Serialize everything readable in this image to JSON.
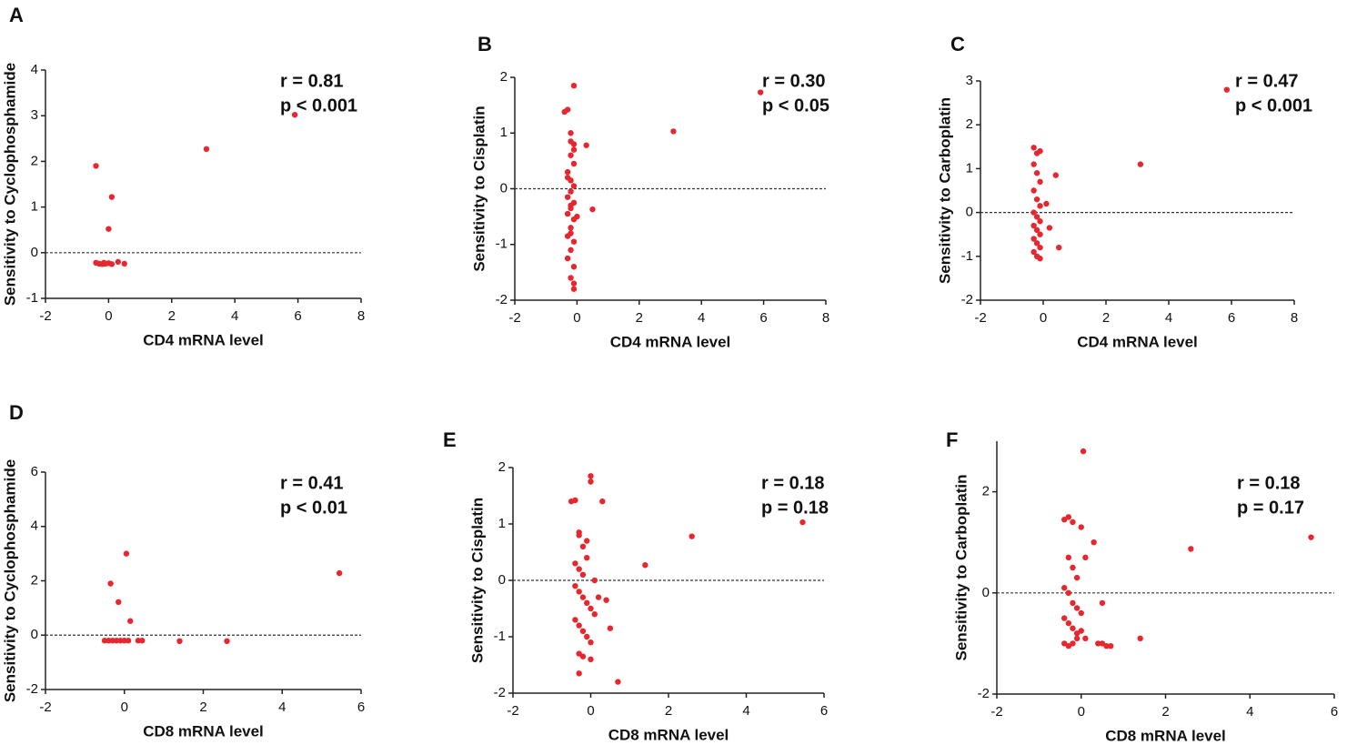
{
  "chart_data": [
    {
      "type": "scatter",
      "panel": "A",
      "xlabel": "CD4 mRNA level",
      "ylabel": "Sensitivity to Cyclophosphamide",
      "annotations": [
        "r = 0.81",
        "p < 0.001"
      ],
      "color": "#e8262e",
      "x": [
        -0.4,
        0.1,
        0.0,
        3.1,
        5.9,
        -0.4,
        -0.3,
        -0.2,
        -0.1,
        0.0,
        0.1,
        0.3,
        0.5,
        -0.15
      ],
      "y": [
        1.9,
        1.22,
        0.52,
        2.27,
        3.02,
        -0.22,
        -0.24,
        -0.25,
        -0.24,
        -0.23,
        -0.25,
        -0.2,
        -0.24,
        -0.22
      ],
      "xlim": [
        -2,
        8
      ],
      "ylim": [
        -1,
        4
      ],
      "xticks": [
        -2,
        0,
        2,
        4,
        6,
        8
      ],
      "yticks": [
        -1,
        0,
        1,
        2,
        3,
        4
      ],
      "hline": 0
    },
    {
      "type": "scatter",
      "panel": "B",
      "xlabel": "CD4 mRNA level",
      "ylabel": "Sensitivity to Cisplatin",
      "annotations": [
        "r = 0.30",
        "p < 0.05"
      ],
      "color": "#e8262e",
      "x": [
        -0.3,
        -0.4,
        -0.1,
        -0.2,
        -0.1,
        -0.2,
        -0.1,
        -0.3,
        -0.2,
        -0.1,
        -0.2,
        -0.3,
        -0.1,
        -0.2,
        -0.3,
        -0.1,
        -0.2,
        -0.3,
        -0.1,
        -0.2,
        -0.3,
        -0.1,
        -0.2,
        -0.1,
        -0.3,
        -0.2,
        -0.1,
        0.0,
        -0.2,
        0.3,
        0.5,
        3.1,
        5.9,
        -0.1,
        -0.2
      ],
      "y": [
        1.42,
        1.38,
        1.85,
        0.85,
        0.8,
        0.6,
        0.45,
        0.3,
        0.15,
        0.05,
        -0.05,
        -0.15,
        -0.25,
        -0.35,
        -0.45,
        -0.55,
        -0.7,
        -0.85,
        -0.95,
        -1.1,
        -1.25,
        -1.4,
        -1.6,
        -1.8,
        0.2,
        -0.3,
        0.7,
        -0.5,
        1.0,
        0.78,
        -0.37,
        1.03,
        1.73,
        -1.7,
        -0.8
      ],
      "xlim": [
        -2,
        8
      ],
      "ylim": [
        -2,
        2
      ],
      "xticks": [
        -2,
        0,
        2,
        4,
        6,
        8
      ],
      "yticks": [
        -2,
        -1,
        0,
        1,
        2
      ],
      "hline": 0
    },
    {
      "type": "scatter",
      "panel": "C",
      "xlabel": "CD4 mRNA level",
      "ylabel": "Sensitivity to Carboplatin",
      "annotations": [
        "r = 0.47",
        "p < 0.001"
      ],
      "color": "#e8262e",
      "x": [
        -0.3,
        -0.1,
        -0.2,
        -0.3,
        -0.2,
        -0.1,
        -0.3,
        -0.2,
        -0.1,
        -0.3,
        -0.2,
        -0.1,
        -0.3,
        -0.2,
        -0.1,
        -0.3,
        -0.2,
        -0.1,
        -0.3,
        -0.2,
        -0.1,
        0.1,
        0.2,
        0.4,
        0.5,
        3.1,
        5.85
      ],
      "y": [
        1.48,
        1.4,
        1.35,
        1.1,
        0.9,
        0.7,
        0.5,
        0.3,
        0.15,
        0.0,
        -0.1,
        -0.2,
        -0.3,
        -0.4,
        -0.5,
        -0.6,
        -0.7,
        -0.8,
        -0.9,
        -1.0,
        -1.05,
        0.2,
        -0.35,
        0.85,
        -0.8,
        1.1,
        2.8
      ],
      "xlim": [
        -2,
        8
      ],
      "ylim": [
        -2,
        3
      ],
      "xticks": [
        -2,
        0,
        2,
        4,
        6,
        8
      ],
      "yticks": [
        -2,
        -1,
        0,
        1,
        2,
        3
      ],
      "hline": 0
    },
    {
      "type": "scatter",
      "panel": "D",
      "xlabel": "CD8 mRNA level",
      "ylabel": "Sensitivity to Cyclophosphamide",
      "annotations": [
        "r = 0.41",
        "p < 0.01"
      ],
      "color": "#e8262e",
      "x": [
        -0.5,
        -0.4,
        -0.3,
        -0.2,
        -0.1,
        0.0,
        0.1,
        0.35,
        0.45,
        1.4,
        2.6,
        5.45,
        -0.35,
        -0.15,
        0.05,
        0.15
      ],
      "y": [
        -0.2,
        -0.2,
        -0.2,
        -0.2,
        -0.2,
        -0.2,
        -0.2,
        -0.2,
        -0.2,
        -0.22,
        -0.22,
        2.28,
        1.9,
        1.22,
        3.0,
        0.52
      ],
      "xlim": [
        -2,
        6
      ],
      "ylim": [
        -2,
        6
      ],
      "xticks": [
        -2,
        0,
        2,
        4,
        6
      ],
      "yticks": [
        -2,
        0,
        2,
        4,
        6
      ],
      "hline": 0
    },
    {
      "type": "scatter",
      "panel": "E",
      "xlabel": "CD8 mRNA level",
      "ylabel": "Sensitivity to Cisplatin",
      "annotations": [
        "r = 0.18",
        "p = 0.18"
      ],
      "color": "#e8262e",
      "x": [
        -0.5,
        -0.4,
        0.0,
        0.0,
        0.3,
        -0.3,
        -0.3,
        -0.2,
        -0.1,
        -0.4,
        -0.3,
        -0.2,
        0.1,
        -0.4,
        -0.3,
        -0.2,
        -0.1,
        0.0,
        0.1,
        -0.4,
        -0.3,
        -0.2,
        -0.1,
        0.0,
        0.2,
        -0.3,
        -0.2,
        0.4,
        0.5,
        -0.3,
        0.0,
        -0.1,
        0.7,
        1.4,
        2.6,
        5.45
      ],
      "y": [
        1.4,
        1.42,
        1.85,
        1.75,
        1.4,
        0.85,
        0.8,
        0.6,
        0.4,
        0.3,
        0.2,
        0.1,
        0.0,
        -0.1,
        -0.2,
        -0.3,
        -0.4,
        -0.5,
        -0.6,
        -0.7,
        -0.8,
        -0.9,
        -1.0,
        -1.1,
        -0.3,
        -1.3,
        -1.35,
        -0.35,
        -0.85,
        -1.65,
        -1.4,
        0.7,
        -1.8,
        0.27,
        0.78,
        1.03
      ],
      "xlim": [
        -2,
        6
      ],
      "ylim": [
        -2,
        2
      ],
      "xticks": [
        -2,
        0,
        2,
        4,
        6
      ],
      "yticks": [
        -2,
        -1,
        0,
        1,
        2
      ],
      "hline": 0
    },
    {
      "type": "scatter",
      "panel": "F",
      "xlabel": "CD8 mRNA level",
      "ylabel": "Sensitivity to Carboplatin",
      "annotations": [
        "r = 0.18",
        "p = 0.17"
      ],
      "color": "#e8262e",
      "x": [
        -0.4,
        -0.3,
        -0.2,
        0.0,
        0.05,
        -0.3,
        -0.2,
        -0.1,
        0.1,
        -0.4,
        -0.3,
        -0.2,
        -0.1,
        0.0,
        -0.4,
        -0.3,
        -0.2,
        -0.1,
        0.1,
        -0.4,
        -0.3,
        -0.2,
        -0.1,
        0.0,
        0.4,
        0.5,
        0.6,
        0.7,
        1.4,
        2.6,
        5.45,
        0.3,
        0.5
      ],
      "y": [
        1.45,
        1.5,
        1.4,
        1.3,
        2.8,
        0.7,
        0.5,
        0.3,
        0.7,
        0.1,
        0.0,
        -0.2,
        -0.3,
        -0.4,
        -0.5,
        -0.6,
        -0.7,
        -0.8,
        -0.9,
        -1.0,
        -1.05,
        -1.0,
        -0.9,
        -0.75,
        -1.0,
        -1.0,
        -1.05,
        -1.05,
        -0.9,
        0.87,
        1.1,
        1.0,
        -0.2
      ],
      "xlim": [
        -2,
        6
      ],
      "ylim": [
        -2,
        3
      ],
      "xticks": [
        -2,
        0,
        2,
        4,
        6
      ],
      "yticks": [
        -2,
        0,
        2
      ],
      "hline": 0
    }
  ]
}
